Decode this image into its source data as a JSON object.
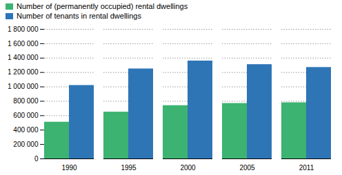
{
  "chart_data": {
    "type": "bar",
    "categories": [
      "1990",
      "1995",
      "2000",
      "2005",
      "2011"
    ],
    "series": [
      {
        "name": "Number of (permanently occupied) rental dwellings",
        "color": "#3CB371",
        "values": [
          510000,
          650000,
          740000,
          770000,
          780000
        ]
      },
      {
        "name": "Number of tenants in rental dwellings",
        "color": "#2E75B6",
        "values": [
          1020000,
          1250000,
          1360000,
          1310000,
          1270000
        ]
      }
    ],
    "ylim": [
      0,
      1800000
    ],
    "yticks": [
      0,
      {
        "value": 200000,
        "label": "200 000"
      },
      {
        "value": 400000,
        "label": "400 000"
      },
      {
        "value": 600000,
        "label": "600 000"
      },
      {
        "value": 800000,
        "label": "800 000"
      },
      {
        "value": 1000000,
        "label": "1 000 000"
      },
      {
        "value": 1200000,
        "label": "1 200 000"
      },
      {
        "value": 1400000,
        "label": "1 400 000"
      },
      {
        "value": 1600000,
        "label": "1 600 000"
      },
      {
        "value": 1800000,
        "label": "1 800 000"
      }
    ],
    "grid": true,
    "legend": "upper left"
  }
}
